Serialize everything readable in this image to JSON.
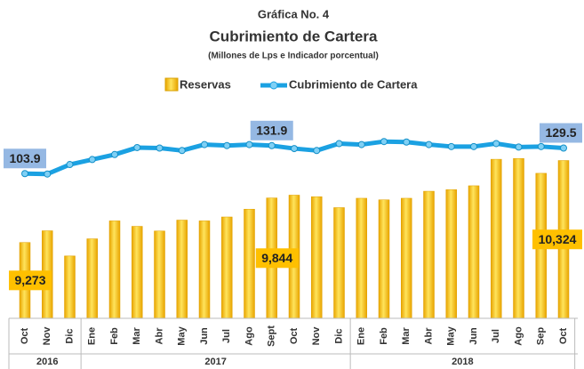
{
  "chart_data": {
    "type": "bar_line",
    "title": "Gráfica No. 4",
    "subtitle": "Cubrimiento de Cartera",
    "note": "(Millones de Lps e Indicador porcentual)",
    "categories": [
      "Oct",
      "Nov",
      "Dic",
      "Ene",
      "Feb",
      "Mar",
      "Abr",
      "May",
      "Jun",
      "Jul",
      "Ago",
      "Sept",
      "Oct",
      "Nov",
      "Dic",
      "Ene",
      "Feb",
      "Mar",
      "Abr",
      "May",
      "Jun",
      "Jul",
      "Ago",
      "Sep",
      "Oct"
    ],
    "groups": [
      {
        "name": "2016",
        "count": 3
      },
      {
        "name": "2017",
        "count": 12
      },
      {
        "name": "2018",
        "count": 10
      }
    ],
    "series": [
      {
        "name": "Reservas",
        "type": "bar",
        "color": "#ffc000",
        "values": [
          9273,
          9423,
          9100,
          9320,
          9550,
          9480,
          9420,
          9560,
          9550,
          9600,
          9700,
          9844,
          9880,
          9860,
          9720,
          9840,
          9820,
          9840,
          9930,
          9950,
          10000,
          10340,
          10350,
          10160,
          10324
        ],
        "value_labels": [
          "9,273",
          null,
          null,
          null,
          null,
          null,
          null,
          null,
          null,
          null,
          null,
          "9,844",
          null,
          null,
          null,
          null,
          null,
          null,
          null,
          null,
          null,
          null,
          null,
          null,
          "10,324"
        ]
      },
      {
        "name": "Cubrimiento de Cartera",
        "type": "line",
        "color": "#1ba1e2",
        "axis": "y2",
        "values": [
          103.9,
          103.5,
          113,
          118,
          123,
          130,
          129.5,
          127,
          133,
          132,
          133,
          131.9,
          129,
          127,
          134,
          133,
          136,
          135.5,
          133,
          131,
          131,
          134,
          130.5,
          131,
          129.5
        ],
        "value_labels": [
          "103.9",
          null,
          null,
          null,
          null,
          null,
          null,
          null,
          null,
          null,
          null,
          "131.9",
          null,
          null,
          null,
          null,
          null,
          null,
          null,
          null,
          null,
          null,
          null,
          null,
          "129.5"
        ]
      }
    ],
    "ylim": [
      8300,
      10900
    ],
    "y2lim": [
      -41,
      162
    ],
    "legend": "top"
  }
}
